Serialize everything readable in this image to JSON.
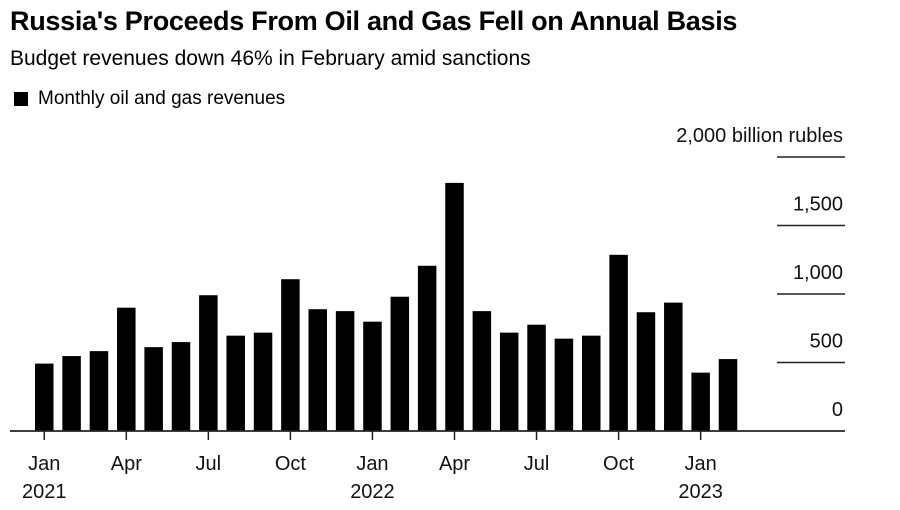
{
  "header": {
    "title": "Russia's Proceeds From Oil and Gas Fell on Annual Basis",
    "subtitle": "Budget revenues down 46% in February amid sanctions"
  },
  "legend": {
    "label": "Monthly oil and gas revenues",
    "color": "#000000"
  },
  "chart_data": {
    "type": "bar",
    "title": "Russia's Proceeds From Oil and Gas Fell on Annual Basis",
    "subtitle": "Budget revenues down 46% in February amid sanctions",
    "xlabel": "",
    "ylabel": "billion rubles",
    "ylim": [
      0,
      2000
    ],
    "yticks": [
      0,
      500,
      1000,
      1500,
      2000
    ],
    "ytick_labels": [
      "0",
      "500",
      "1,000",
      "1,500",
      "2,000 billion rubles"
    ],
    "y_axis_side": "right",
    "grid": true,
    "legend": {
      "entries": [
        "Monthly oil and gas revenues"
      ],
      "placement": "top-left"
    },
    "categories": [
      "2021-01",
      "2021-02",
      "2021-03",
      "2021-04",
      "2021-05",
      "2021-06",
      "2021-07",
      "2021-08",
      "2021-09",
      "2021-10",
      "2021-11",
      "2021-12",
      "2022-01",
      "2022-02",
      "2022-03",
      "2022-04",
      "2022-05",
      "2022-06",
      "2022-07",
      "2022-08",
      "2022-09",
      "2022-10",
      "2022-11",
      "2022-12",
      "2023-01",
      "2023-02"
    ],
    "series": [
      {
        "name": "Monthly oil and gas revenues",
        "color": "#000000",
        "values": [
          492,
          547,
          583,
          900,
          612,
          649,
          991,
          696,
          718,
          1108,
          889,
          875,
          798,
          980,
          1206,
          1811,
          875,
          718,
          776,
          674,
          696,
          1286,
          867,
          937,
          426,
          525
        ]
      }
    ],
    "xticks": [
      {
        "index": 0,
        "month": "Jan",
        "year": "2021"
      },
      {
        "index": 3,
        "month": "Apr",
        "year": ""
      },
      {
        "index": 6,
        "month": "Jul",
        "year": ""
      },
      {
        "index": 9,
        "month": "Oct",
        "year": ""
      },
      {
        "index": 12,
        "month": "Jan",
        "year": "2022"
      },
      {
        "index": 15,
        "month": "Apr",
        "year": ""
      },
      {
        "index": 18,
        "month": "Jul",
        "year": ""
      },
      {
        "index": 21,
        "month": "Oct",
        "year": ""
      },
      {
        "index": 24,
        "month": "Jan",
        "year": "2023"
      }
    ]
  }
}
